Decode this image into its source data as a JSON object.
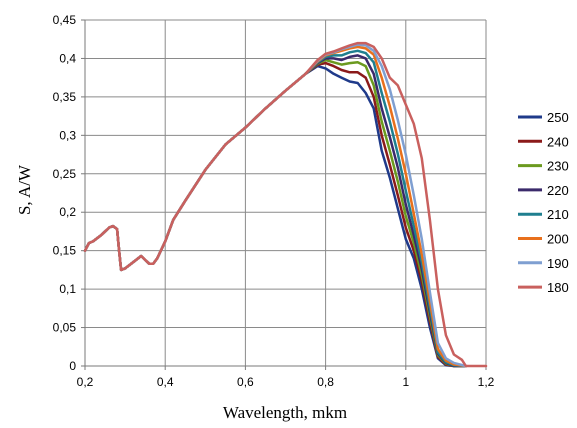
{
  "chart_data": {
    "type": "line",
    "title": "",
    "xlabel": "Wavelength, mkm",
    "ylabel": "S, A/W",
    "xlim": [
      0.2,
      1.2
    ],
    "ylim": [
      0,
      0.45
    ],
    "x_ticks": [
      "0,2",
      "0,4",
      "0,6",
      "0,8",
      "1",
      "1,2"
    ],
    "x_tick_values": [
      0.2,
      0.4,
      0.6,
      0.8,
      1.0,
      1.2
    ],
    "y_ticks": [
      "0",
      "0,05",
      "0,1",
      "0,15",
      "0,2",
      "0,25",
      "0,3",
      "0,35",
      "0,4",
      "0,45"
    ],
    "y_tick_values": [
      0,
      0.05,
      0.1,
      0.15,
      0.2,
      0.25,
      0.3,
      0.35,
      0.4,
      0.45
    ],
    "grid": true,
    "legend_position": "right",
    "common_curve": {
      "x": [
        0.2,
        0.21,
        0.22,
        0.24,
        0.26,
        0.27,
        0.28,
        0.285,
        0.29,
        0.3,
        0.32,
        0.34,
        0.36,
        0.37,
        0.38,
        0.4,
        0.42,
        0.45,
        0.5,
        0.55,
        0.6,
        0.65,
        0.7,
        0.75
      ],
      "y": [
        0.15,
        0.16,
        0.162,
        0.17,
        0.18,
        0.182,
        0.178,
        0.15,
        0.125,
        0.127,
        0.135,
        0.143,
        0.133,
        0.133,
        0.14,
        0.162,
        0.19,
        0.215,
        0.255,
        0.288,
        0.31,
        0.335,
        0.358,
        0.38
      ]
    },
    "series": [
      {
        "name": "250",
        "color": "#1f3a8a",
        "x": [
          0.78,
          0.8,
          0.82,
          0.84,
          0.86,
          0.88,
          0.9,
          0.92,
          0.94,
          0.96,
          0.98,
          1.0,
          1.02,
          1.04,
          1.06,
          1.08,
          1.1,
          1.12,
          1.15
        ],
        "y": [
          0.39,
          0.387,
          0.38,
          0.375,
          0.37,
          0.368,
          0.355,
          0.335,
          0.28,
          0.245,
          0.205,
          0.165,
          0.14,
          0.1,
          0.05,
          0.01,
          0.001,
          0,
          0
        ]
      },
      {
        "name": "240",
        "color": "#8b1a1a",
        "x": [
          0.78,
          0.8,
          0.82,
          0.84,
          0.86,
          0.88,
          0.9,
          0.92,
          0.94,
          0.96,
          0.98,
          1.0,
          1.02,
          1.04,
          1.06,
          1.08,
          1.1,
          1.12,
          1.15
        ],
        "y": [
          0.392,
          0.394,
          0.39,
          0.385,
          0.382,
          0.382,
          0.375,
          0.35,
          0.3,
          0.262,
          0.222,
          0.18,
          0.15,
          0.11,
          0.058,
          0.012,
          0.002,
          0,
          0
        ]
      },
      {
        "name": "230",
        "color": "#6b9a1f",
        "x": [
          0.78,
          0.8,
          0.82,
          0.84,
          0.86,
          0.88,
          0.9,
          0.92,
          0.94,
          0.96,
          0.98,
          1.0,
          1.02,
          1.04,
          1.06,
          1.08,
          1.1,
          1.12,
          1.15
        ],
        "y": [
          0.393,
          0.398,
          0.395,
          0.392,
          0.394,
          0.395,
          0.39,
          0.365,
          0.318,
          0.28,
          0.24,
          0.195,
          0.16,
          0.118,
          0.064,
          0.014,
          0.003,
          0,
          0
        ]
      },
      {
        "name": "220",
        "color": "#3b2a6b",
        "x": [
          0.78,
          0.8,
          0.82,
          0.84,
          0.86,
          0.88,
          0.9,
          0.92,
          0.94,
          0.96,
          0.98,
          1.0,
          1.02,
          1.04,
          1.06,
          1.08,
          1.1,
          1.12,
          1.15
        ],
        "y": [
          0.394,
          0.4,
          0.4,
          0.398,
          0.402,
          0.404,
          0.4,
          0.38,
          0.335,
          0.298,
          0.258,
          0.21,
          0.17,
          0.126,
          0.07,
          0.016,
          0.004,
          0,
          0
        ]
      },
      {
        "name": "210",
        "color": "#1f7f8f",
        "x": [
          0.78,
          0.8,
          0.82,
          0.84,
          0.86,
          0.88,
          0.9,
          0.92,
          0.94,
          0.96,
          0.98,
          1.0,
          1.02,
          1.04,
          1.06,
          1.08,
          1.1,
          1.12,
          1.15
        ],
        "y": [
          0.395,
          0.402,
          0.404,
          0.404,
          0.408,
          0.41,
          0.407,
          0.395,
          0.355,
          0.318,
          0.276,
          0.228,
          0.182,
          0.135,
          0.076,
          0.018,
          0.005,
          0.001,
          0
        ]
      },
      {
        "name": "200",
        "color": "#e8701c",
        "x": [
          0.78,
          0.8,
          0.82,
          0.84,
          0.86,
          0.88,
          0.9,
          0.92,
          0.94,
          0.96,
          0.98,
          1.0,
          1.02,
          1.04,
          1.06,
          1.08,
          1.1,
          1.12,
          1.15
        ],
        "y": [
          0.396,
          0.404,
          0.407,
          0.41,
          0.413,
          0.415,
          0.413,
          0.405,
          0.375,
          0.338,
          0.296,
          0.25,
          0.198,
          0.145,
          0.084,
          0.022,
          0.007,
          0.002,
          0
        ]
      },
      {
        "name": "190",
        "color": "#7f9fd1",
        "x": [
          0.78,
          0.8,
          0.82,
          0.84,
          0.86,
          0.88,
          0.9,
          0.92,
          0.94,
          0.96,
          0.98,
          1.0,
          1.02,
          1.04,
          1.06,
          1.08,
          1.1,
          1.12,
          1.15
        ],
        "y": [
          0.397,
          0.405,
          0.408,
          0.412,
          0.415,
          0.418,
          0.417,
          0.41,
          0.39,
          0.36,
          0.32,
          0.275,
          0.222,
          0.165,
          0.096,
          0.03,
          0.01,
          0.004,
          0
        ]
      },
      {
        "name": "180",
        "color": "#c9605e",
        "x": [
          0.78,
          0.8,
          0.82,
          0.84,
          0.86,
          0.88,
          0.9,
          0.92,
          0.94,
          0.96,
          0.98,
          1.0,
          1.02,
          1.04,
          1.06,
          1.08,
          1.1,
          1.12,
          1.14,
          1.15,
          1.17,
          1.2
        ],
        "y": [
          0.398,
          0.406,
          0.409,
          0.413,
          0.417,
          0.42,
          0.42,
          0.415,
          0.4,
          0.375,
          0.365,
          0.34,
          0.315,
          0.27,
          0.19,
          0.1,
          0.04,
          0.015,
          0.008,
          0,
          0,
          0
        ]
      }
    ]
  }
}
